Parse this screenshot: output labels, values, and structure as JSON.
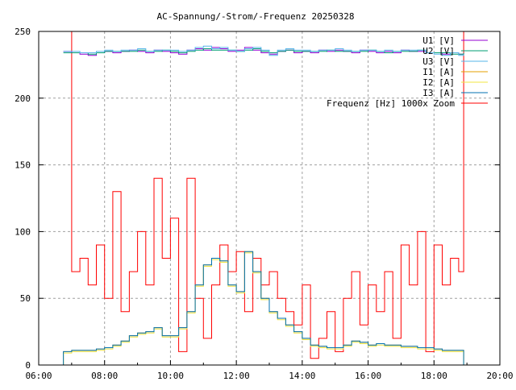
{
  "chart_data": {
    "type": "line",
    "title": "AC-Spannung/-Strom/-Frequenz 20250328",
    "xlabel": "",
    "ylabel": "",
    "xlim": [
      6,
      20
    ],
    "ylim": [
      0,
      250
    ],
    "xticks": [
      {
        "v": 6,
        "label": "06:00"
      },
      {
        "v": 8,
        "label": "08:00"
      },
      {
        "v": 10,
        "label": "10:00"
      },
      {
        "v": 12,
        "label": "12:00"
      },
      {
        "v": 14,
        "label": "14:00"
      },
      {
        "v": 16,
        "label": "16:00"
      },
      {
        "v": 18,
        "label": "18:00"
      },
      {
        "v": 20,
        "label": "20:00"
      }
    ],
    "yticks": [
      0,
      50,
      100,
      150,
      200,
      250
    ],
    "grid": true,
    "legend_position": "top-right",
    "x": [
      6.75,
      7.0,
      7.25,
      7.5,
      7.75,
      8.0,
      8.25,
      8.5,
      8.75,
      9.0,
      9.25,
      9.5,
      9.75,
      10.0,
      10.25,
      10.5,
      10.75,
      11.0,
      11.25,
      11.5,
      11.75,
      12.0,
      12.25,
      12.5,
      12.75,
      13.0,
      13.25,
      13.5,
      13.75,
      14.0,
      14.25,
      14.5,
      14.75,
      15.0,
      15.25,
      15.5,
      15.75,
      16.0,
      16.25,
      16.5,
      16.75,
      17.0,
      17.25,
      17.5,
      17.75,
      18.0,
      18.25,
      18.5,
      18.75,
      18.9
    ],
    "series": [
      {
        "name": "U1 [V]",
        "color": "#9400d3",
        "values": [
          235,
          234,
          233,
          232,
          234,
          235,
          234,
          235,
          236,
          235,
          234,
          236,
          235,
          234,
          233,
          236,
          237,
          236,
          238,
          237,
          235,
          236,
          238,
          236,
          234,
          233,
          235,
          236,
          234,
          235,
          234,
          236,
          235,
          236,
          235,
          234,
          236,
          235,
          234,
          235,
          234,
          236,
          235,
          235,
          234,
          234,
          233,
          234,
          233,
          233
        ]
      },
      {
        "name": "U2 [V]",
        "color": "#009e73",
        "values": [
          234,
          234,
          234,
          233,
          234,
          235,
          235,
          235,
          235,
          236,
          235,
          235,
          236,
          235,
          234,
          235,
          236,
          237,
          236,
          236,
          236,
          235,
          236,
          237,
          235,
          234,
          235,
          236,
          235,
          235,
          235,
          235,
          236,
          235,
          235,
          235,
          235,
          236,
          235,
          234,
          235,
          235,
          235,
          236,
          234,
          234,
          234,
          233,
          233,
          234
        ]
      },
      {
        "name": "U3 [V]",
        "color": "#56b4e9",
        "values": [
          235,
          235,
          234,
          234,
          235,
          236,
          235,
          236,
          236,
          237,
          235,
          236,
          236,
          236,
          235,
          236,
          238,
          239,
          237,
          238,
          236,
          235,
          237,
          238,
          236,
          232,
          236,
          237,
          236,
          236,
          235,
          236,
          236,
          237,
          236,
          235,
          236,
          236,
          235,
          236,
          235,
          236,
          236,
          236,
          234,
          233,
          232,
          234,
          232,
          233
        ]
      },
      {
        "name": "I1 [A]",
        "color": "#e69f00",
        "values": [
          10,
          11,
          11,
          11,
          12,
          13,
          15,
          18,
          22,
          24,
          25,
          28,
          22,
          22,
          28,
          40,
          60,
          75,
          80,
          78,
          60,
          55,
          85,
          70,
          50,
          40,
          35,
          30,
          25,
          20,
          15,
          14,
          13,
          13,
          15,
          18,
          17,
          15,
          16,
          15,
          15,
          14,
          14,
          13,
          13,
          12,
          11,
          11,
          11,
          10
        ]
      },
      {
        "name": "I2 [A]",
        "color": "#f0e442",
        "values": [
          9,
          10,
          10,
          10,
          11,
          12,
          14,
          17,
          21,
          23,
          24,
          27,
          21,
          21,
          27,
          39,
          59,
          74,
          79,
          77,
          59,
          54,
          84,
          69,
          49,
          39,
          34,
          29,
          24,
          19,
          14,
          13,
          12,
          12,
          14,
          17,
          16,
          14,
          15,
          14,
          14,
          13,
          13,
          12,
          12,
          11,
          10,
          10,
          10,
          9
        ]
      },
      {
        "name": "I3 [A]",
        "color": "#0072b2",
        "values": [
          10,
          11,
          11,
          11,
          12,
          13,
          15,
          18,
          22,
          24,
          25,
          28,
          22,
          22,
          28,
          40,
          60,
          75,
          80,
          78,
          60,
          55,
          85,
          70,
          50,
          40,
          35,
          30,
          25,
          20,
          15,
          14,
          13,
          13,
          15,
          18,
          17,
          15,
          16,
          15,
          15,
          14,
          14,
          13,
          13,
          12,
          11,
          11,
          11,
          10
        ]
      },
      {
        "name": "Frequenz [Hz] 1000x Zoom",
        "color": "#ff0000",
        "values": [
          250,
          70,
          80,
          60,
          90,
          50,
          130,
          40,
          70,
          100,
          60,
          140,
          80,
          110,
          10,
          140,
          50,
          20,
          60,
          90,
          70,
          85,
          40,
          80,
          60,
          70,
          50,
          40,
          30,
          60,
          5,
          20,
          40,
          10,
          50,
          70,
          30,
          60,
          40,
          70,
          20,
          90,
          60,
          100,
          10,
          90,
          60,
          80,
          70,
          250
        ]
      }
    ]
  }
}
